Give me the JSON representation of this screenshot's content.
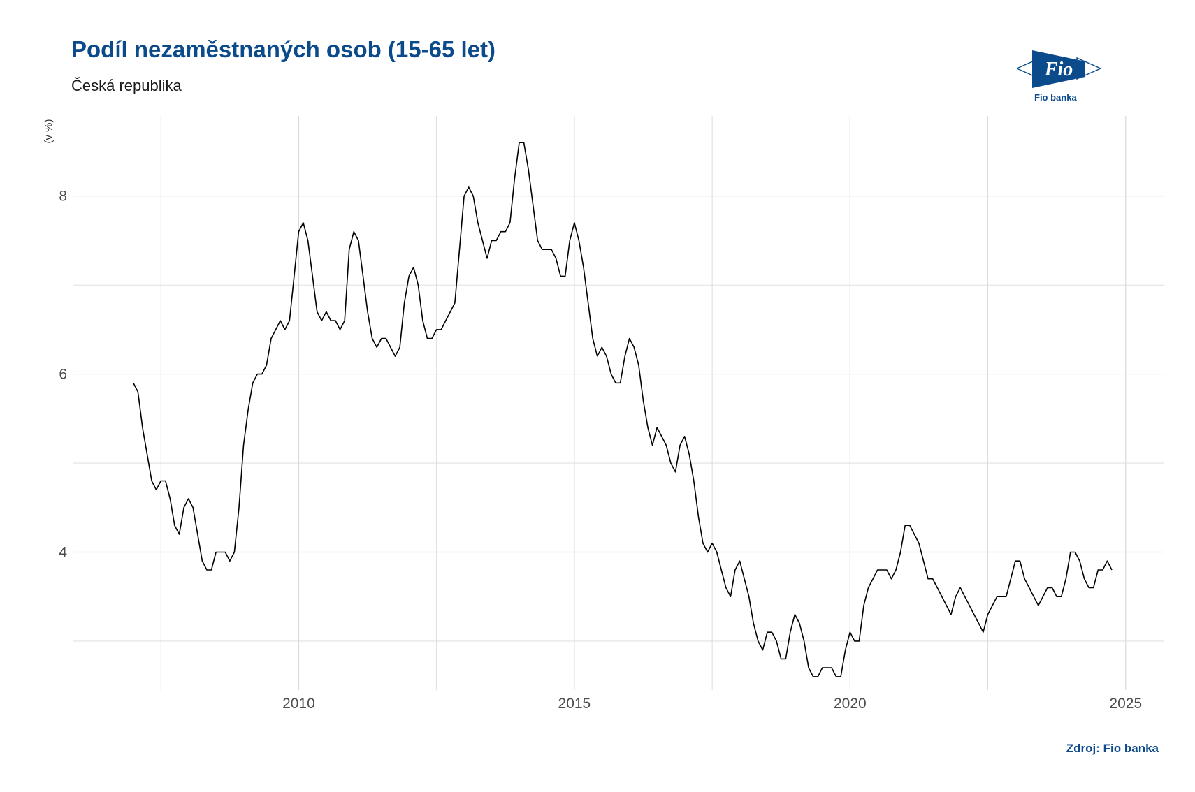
{
  "header": {
    "title": "Podíl nezaměstnaných osob (15-65 let)",
    "subtitle": "Česká republika"
  },
  "logo": {
    "icon": "fio-banka-logo",
    "wordmark": "Fio",
    "name": "Fio banka"
  },
  "footer": {
    "source": "Zdroj: Fio banka"
  },
  "colors": {
    "title": "#0b4a8b",
    "line": "#000000",
    "grid": "#d9d9d9"
  },
  "chart_data": {
    "type": "line",
    "title": "Podíl nezaměstnaných osob (15-65 let)",
    "subtitle": "Česká republika",
    "xlabel": "",
    "ylabel": "(v %)",
    "xlim": [
      2005.9,
      2025.7
    ],
    "ylim": [
      2.45,
      8.9
    ],
    "x_ticks": [
      2010,
      2015,
      2020,
      2025
    ],
    "y_ticks": [
      4,
      6,
      8
    ],
    "grid": true,
    "legend": "none",
    "series": [
      {
        "x_start": 2007.0,
        "x_step": 0.08333,
        "values": [
          5.9,
          5.8,
          5.4,
          5.1,
          4.8,
          4.7,
          4.8,
          4.8,
          4.6,
          4.3,
          4.2,
          4.5,
          4.6,
          4.5,
          4.2,
          3.9,
          3.8,
          3.8,
          4.0,
          4.0,
          4.0,
          3.9,
          4.0,
          4.5,
          5.2,
          5.6,
          5.9,
          6.0,
          6.0,
          6.1,
          6.4,
          6.5,
          6.6,
          6.5,
          6.6,
          7.1,
          7.6,
          7.7,
          7.5,
          7.1,
          6.7,
          6.6,
          6.7,
          6.6,
          6.6,
          6.5,
          6.6,
          7.4,
          7.6,
          7.5,
          7.1,
          6.7,
          6.4,
          6.3,
          6.4,
          6.4,
          6.3,
          6.2,
          6.3,
          6.8,
          7.1,
          7.2,
          7.0,
          6.6,
          6.4,
          6.4,
          6.5,
          6.5,
          6.6,
          6.7,
          6.8,
          7.4,
          8.0,
          8.1,
          8.0,
          7.7,
          7.5,
          7.3,
          7.5,
          7.5,
          7.6,
          7.6,
          7.7,
          8.2,
          8.6,
          8.6,
          8.3,
          7.9,
          7.5,
          7.4,
          7.4,
          7.4,
          7.3,
          7.1,
          7.1,
          7.5,
          7.7,
          7.5,
          7.2,
          6.8,
          6.4,
          6.2,
          6.3,
          6.2,
          6.0,
          5.9,
          5.9,
          6.2,
          6.4,
          6.3,
          6.1,
          5.7,
          5.4,
          5.2,
          5.4,
          5.3,
          5.2,
          5.0,
          4.9,
          5.2,
          5.3,
          5.1,
          4.8,
          4.4,
          4.1,
          4.0,
          4.1,
          4.0,
          3.8,
          3.6,
          3.5,
          3.8,
          3.9,
          3.7,
          3.5,
          3.2,
          3.0,
          2.9,
          3.1,
          3.1,
          3.0,
          2.8,
          2.8,
          3.1,
          3.3,
          3.2,
          3.0,
          2.7,
          2.6,
          2.6,
          2.7,
          2.7,
          2.7,
          2.6,
          2.6,
          2.9,
          3.1,
          3.0,
          3.0,
          3.4,
          3.6,
          3.7,
          3.8,
          3.8,
          3.8,
          3.7,
          3.8,
          4.0,
          4.3,
          4.3,
          4.2,
          4.1,
          3.9,
          3.7,
          3.7,
          3.6,
          3.5,
          3.4,
          3.3,
          3.5,
          3.6,
          3.5,
          3.4,
          3.3,
          3.2,
          3.1,
          3.3,
          3.4,
          3.5,
          3.5,
          3.5,
          3.7,
          3.9,
          3.9,
          3.7,
          3.6,
          3.5,
          3.4,
          3.5,
          3.6,
          3.6,
          3.5,
          3.5,
          3.7,
          4.0,
          4.0,
          3.9,
          3.7,
          3.6,
          3.6,
          3.8,
          3.8,
          3.9,
          3.8
        ]
      }
    ]
  }
}
